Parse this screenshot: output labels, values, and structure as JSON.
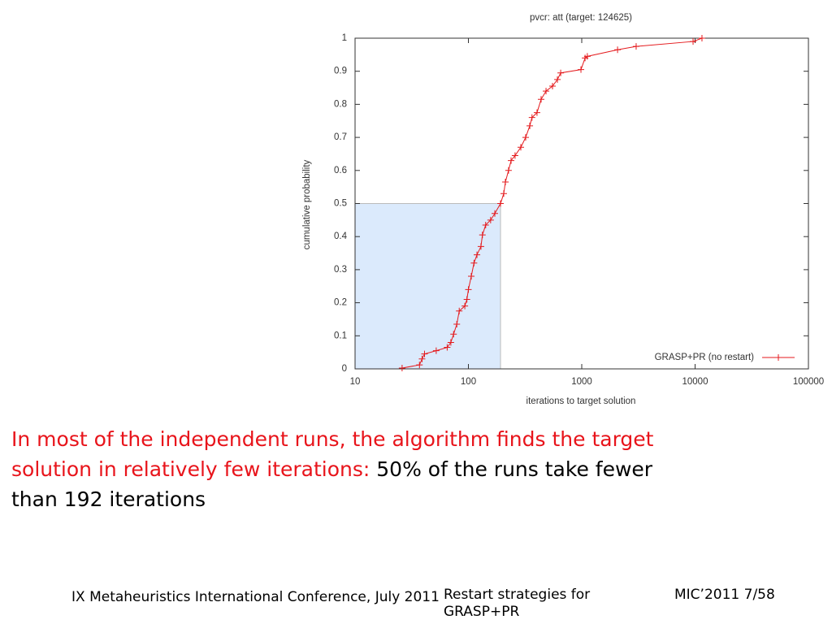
{
  "chart_data": {
    "type": "line",
    "title": "pvcr: att (target: 124625)",
    "xlabel": "iterations to target solution",
    "ylabel": "cumulative probability",
    "xscale": "log",
    "xlim": [
      10,
      100000
    ],
    "xticks": [
      10,
      100,
      1000,
      10000,
      100000
    ],
    "ylim": [
      0,
      1
    ],
    "yticks": [
      0,
      0.1,
      0.2,
      0.3,
      0.4,
      0.5,
      0.6,
      0.7,
      0.8,
      0.9,
      1
    ],
    "legend": "lower right",
    "highlight": {
      "x": 192,
      "y": 0.5,
      "color": "#dbeafc"
    },
    "series": [
      {
        "name": "GRASP+PR (no restart)",
        "color": "#e4191c",
        "x": [
          26,
          37,
          39,
          41,
          52,
          65,
          70,
          74,
          79,
          83,
          93,
          97,
          100,
          106,
          112,
          119,
          129,
          133,
          142,
          157,
          171,
          192,
          205,
          212,
          226,
          238,
          258,
          290,
          320,
          348,
          364,
          403,
          438,
          484,
          552,
          610,
          652,
          984,
          1070,
          1120,
          2070,
          3020,
          9600,
          11500
        ],
        "values": [
          0.0025,
          0.012,
          0.03,
          0.045,
          0.055,
          0.065,
          0.08,
          0.105,
          0.135,
          0.175,
          0.19,
          0.21,
          0.24,
          0.28,
          0.32,
          0.345,
          0.37,
          0.405,
          0.435,
          0.45,
          0.47,
          0.5,
          0.53,
          0.565,
          0.6,
          0.63,
          0.645,
          0.67,
          0.7,
          0.735,
          0.76,
          0.775,
          0.815,
          0.84,
          0.855,
          0.875,
          0.895,
          0.905,
          0.94,
          0.945,
          0.965,
          0.975,
          0.99,
          1
        ]
      }
    ]
  },
  "caption": {
    "highlighted": "In most of the independent runs, the algorithm finds the target solution in relatively few iterations:",
    "rest": "50% of the runs take fewer than 192 iterations"
  },
  "footer": {
    "left": "IX Metaheuristics International Conference, July 2011",
    "center": "Restart strategies for GRASP+PR",
    "right": "MIC’2011 7/58"
  }
}
